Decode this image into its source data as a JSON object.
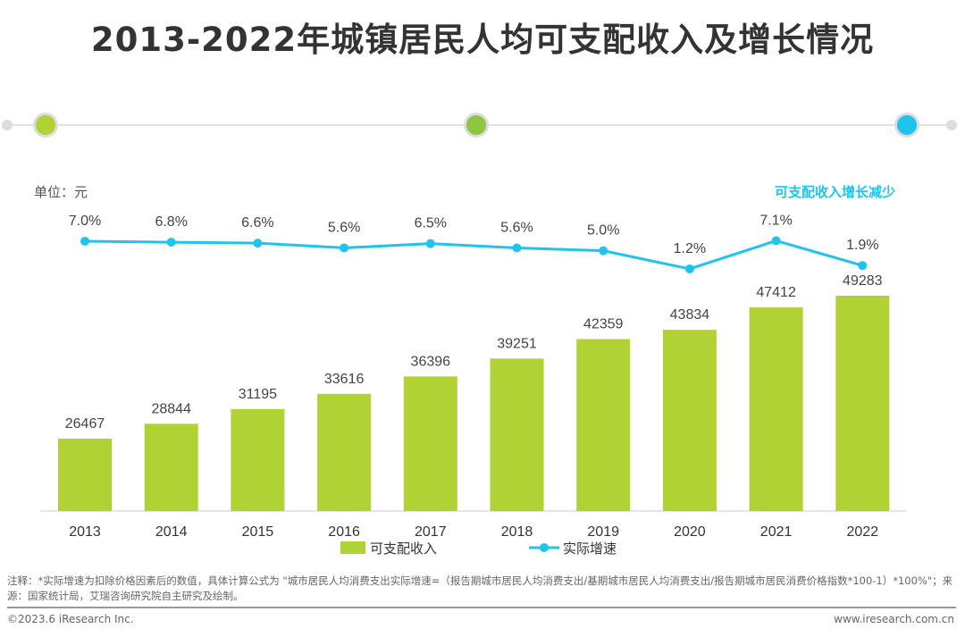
{
  "title": "2013-2022年城镇居民人均可支配收入及增长情况",
  "unit_label": "单位：元",
  "annotation": "可支配收入增长减少",
  "colors": {
    "bar": "#b1d234",
    "line": "#1fc3ee",
    "deco_dots": [
      "#b1d234",
      "#8dc63f",
      "#1fc3ee"
    ]
  },
  "chart_data": {
    "type": "bar+line",
    "categories": [
      "2013",
      "2014",
      "2015",
      "2016",
      "2017",
      "2018",
      "2019",
      "2020",
      "2021",
      "2022"
    ],
    "series": [
      {
        "name": "可支配收入",
        "type": "bar",
        "values": [
          26467,
          28844,
          31195,
          33616,
          36396,
          39251,
          42359,
          43834,
          47412,
          49283
        ],
        "labels": [
          "26467",
          "28844",
          "31195",
          "33616",
          "36396",
          "39251",
          "42359",
          "43834",
          "47412",
          "49283"
        ]
      },
      {
        "name": "实际增速",
        "type": "line",
        "values": [
          7.0,
          6.8,
          6.6,
          5.6,
          6.5,
          5.6,
          5.0,
          1.2,
          7.1,
          1.9
        ],
        "labels": [
          "7.0%",
          "6.8%",
          "6.6%",
          "5.6%",
          "6.5%",
          "5.6%",
          "5.0%",
          "1.2%",
          "7.1%",
          "1.9%"
        ]
      }
    ],
    "legend": "bottom",
    "grid": false
  },
  "footer": {
    "note": "注释：*实际增速为扣除价格因素后的数值，具体计算公式为 \"城市居民人均消费支出实际增速=（报告期城市居民人均消费支出/基期城市居民人均消费支出/报告期城市居民消费价格指数*100-1）*100%\"；来源：国家统计局，艾瑞咨询研究院自主研究及绘制。",
    "copyright": "©2023.6 iResearch Inc.",
    "website": "www.iresearch.com.cn"
  }
}
